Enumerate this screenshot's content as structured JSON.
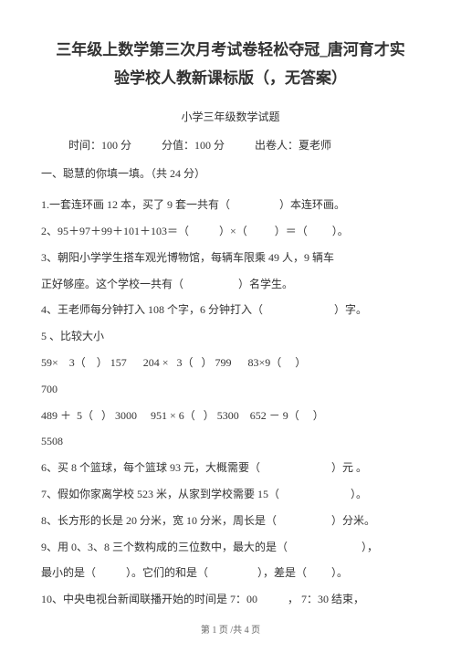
{
  "title_line1": "三年级上数学第三次月考试卷轻松夺冠_唐河育才实",
  "title_line2": "验学校人教新课标版（，无答案）",
  "subtitle": "小学三年级数学试题",
  "meta": {
    "time": "时间：100 分",
    "score": "分值：100 分",
    "author": "出卷人：夏老师"
  },
  "section1": "一、聪慧的你填一填。（共 24 分）",
  "lines": [
    "1.一套连环画 12 本，买了 9 套一共有（                  ）本连环画。",
    "2、95＋97＋99＋101＋103＝（           ）×（          ）＝（         ）。",
    "3、朝阳小学学生搭车观光博物馆，每辆车限乘 49 人，9 辆车",
    "正好够座。这个学校一共有（                    ）名学生。",
    "4、王老师每分钟打入 108 个字，6 分钟打入（                          ）字。",
    "5 、比较大小",
    "59×    3（    ） 157      204 ×   3（   ） 799      83×9（     ）",
    "700",
    "489 ＋  5（   ） 3000     951 × 6（   ） 5300    652 － 9（     ）",
    "5508",
    "6、买 8 个篮球，每个篮球 93 元，大概需要（                          ）元 。",
    "7、假如你家离学校 523 米，从家到学校需要 15（                          ）。",
    "8、长方形的长是 20 分米，宽 10 分米，周长是（                    ）分米。",
    "9、用 0、3、8 三个数构成的三位数中，最大的是（                           ），",
    "最小的是（           ）。它们的和是（                  ），差是（         ）。",
    "10、中央电视台新闻联播开始的时间是 7：00           ， 7：30 结束，"
  ],
  "footer": "第 1 页 /共 4 页"
}
